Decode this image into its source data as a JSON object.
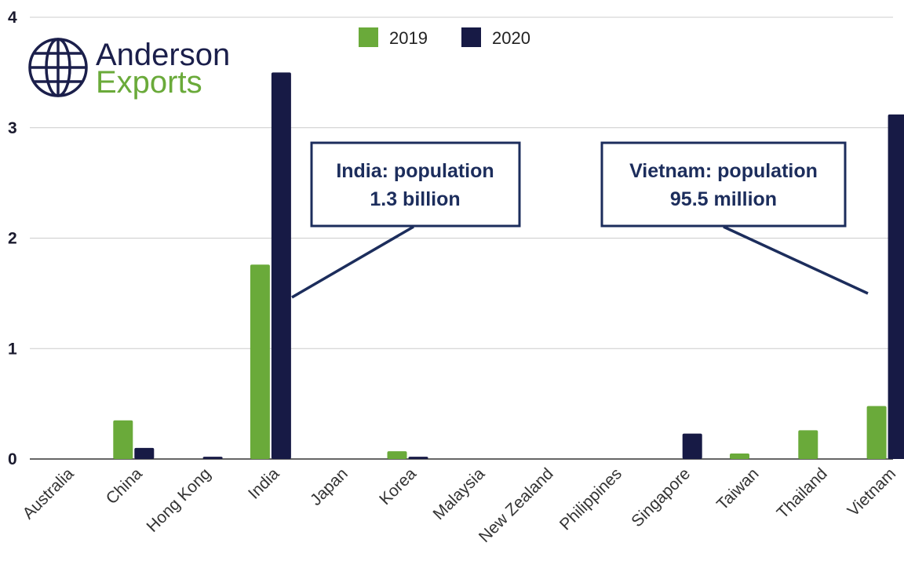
{
  "logo": {
    "line1": "Anderson",
    "line2": "Exports",
    "icon": "globe-icon",
    "line2_color": "#6aaa3a",
    "line1_color": "#1b1f4b"
  },
  "chart_data": {
    "type": "bar",
    "categories": [
      "Australia",
      "China",
      "Hong Kong",
      "India",
      "Japan",
      "Korea",
      "Malaysia",
      "New Zealand",
      "Philippines",
      "Singapore",
      "Taiwan",
      "Thailand",
      "Vietnam"
    ],
    "series": [
      {
        "name": "2019",
        "color": "#6aaa3a",
        "values": [
          0,
          0.35,
          0,
          1.76,
          0,
          0.07,
          0,
          0,
          0,
          0,
          0.05,
          0.26,
          0.48
        ]
      },
      {
        "name": "2020",
        "color": "#171a45",
        "values": [
          0,
          0.1,
          0.02,
          3.5,
          0,
          0.02,
          0,
          0,
          0,
          0.23,
          0,
          0,
          3.12
        ]
      }
    ],
    "ylim": [
      0,
      4
    ],
    "yticks": [
      "0",
      "1",
      "2",
      "3",
      "4"
    ],
    "grid": true,
    "legend_position": "top-center",
    "annotations": [
      {
        "line1": "India: population",
        "line2": "1.3 billion",
        "target_category": "India"
      },
      {
        "line1": "Vietnam: population",
        "line2": "95.5 million",
        "target_category": "Vietnam"
      }
    ]
  }
}
